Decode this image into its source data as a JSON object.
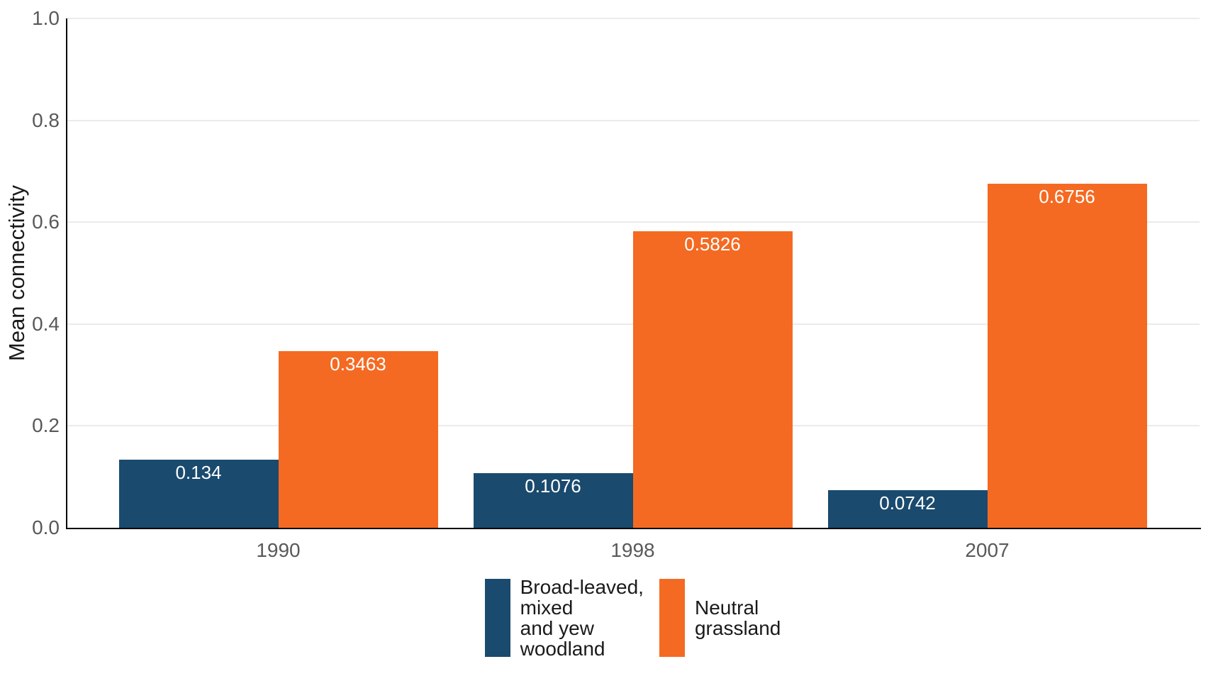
{
  "chart_data": {
    "type": "bar",
    "title": "",
    "xlabel": "",
    "ylabel": "Mean connectivity",
    "categories": [
      "1990",
      "1998",
      "2007"
    ],
    "series": [
      {
        "name": "Broad-leaved, mixed and yew woodland",
        "legend_label": "Broad-leaved,\nmixed\nand yew\nwoodland",
        "color": "#1a4a6e",
        "values": [
          0.134,
          0.1076,
          0.0742
        ],
        "value_labels": [
          "0.134",
          "0.1076",
          "0.0742"
        ]
      },
      {
        "name": "Neutral grassland",
        "legend_label": "Neutral\ngrassland",
        "color": "#f46a22",
        "values": [
          0.3463,
          0.5826,
          0.6756
        ],
        "value_labels": [
          "0.3463",
          "0.5826",
          "0.6756"
        ]
      }
    ],
    "ylim": [
      0.0,
      1.0
    ],
    "yticks": [
      0.0,
      0.2,
      0.4,
      0.6,
      0.8,
      1.0
    ],
    "ytick_labels": [
      "0.0",
      "0.2",
      "0.4",
      "0.6",
      "0.8",
      "1.0"
    ],
    "grid": "horizontal-major-only",
    "legend_position": "bottom-center",
    "value_label_style": "white, inside bar at top"
  },
  "colors": {
    "background": "#ffffff",
    "axis_line": "#000000",
    "gridline": "#ebebeb",
    "tick_text": "#595959",
    "axis_title_text": "#1a1a1a",
    "value_label_text": "#ffffff",
    "series_blue": "#1a4a6e",
    "series_orange": "#f46a22"
  }
}
